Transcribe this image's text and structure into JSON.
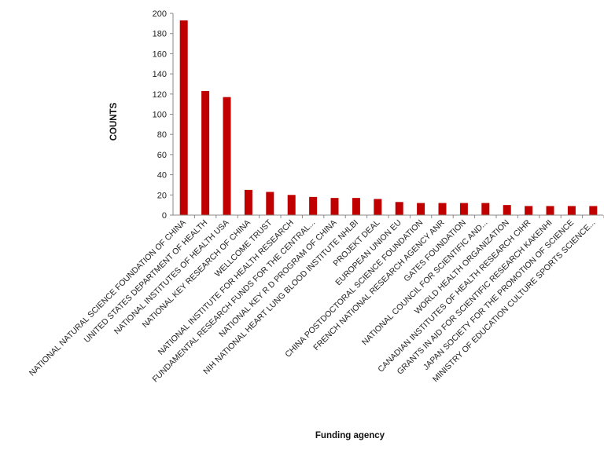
{
  "chart_data": {
    "type": "bar",
    "xlabel": "Funding agency",
    "ylabel": "COUNTS",
    "ylim": [
      0,
      200
    ],
    "yticks": [
      0,
      20,
      40,
      60,
      80,
      100,
      120,
      140,
      160,
      180,
      200
    ],
    "grid": false,
    "legend": "none",
    "bar_color": "#c00000",
    "categories": [
      "NATIONAL NATURAL SCIENCE FOUNDATION OF CHINA",
      "UNITED STATES DEPARTMENT OF HEALTH",
      "NATIONAL INSTITUTES OF HEALTH USA",
      "NATIONAL KEY RESEARCH OF CHINA",
      "WELLCOME TRUST",
      "NATIONAL INSTITUTE FOR HEALTH RESEARCH",
      "FUNDAMENTAL RESEARCH FUNDS FOR THE CENTRAL...",
      "NATIONAL KEY R D PROGRAM OF CHINA",
      "NIH NATIONAL HEART LUNG BLOOD INSTITUTE NHLBI",
      "PROJEKT DEAL",
      "EUROPEAN UNION EU",
      "CHINA POSTDOCTORAL SCIENCE FOUNDATION",
      "FRENCH NATIONAL RESEARCH AGENCY ANR",
      "GATES FOUNDATION",
      "NATIONAL COUNCIL FOR SCIENTIFIC AND...",
      "WORLD HEALTH ORGANIZATION",
      "CANADIAN INSTITUTES OF HEALTH RESEARCH CIHR",
      "GRANTS IN AID FOR SCIENTIFIC RESEARCH KAKENHI",
      "JAPAN SOCIETY FOR THE PROMOTION OF SCIENCE",
      "MINISTRY OF EDUCATION CULTURE SPORTS SCIENCE..."
    ],
    "values": [
      193,
      123,
      117,
      25,
      23,
      20,
      18,
      17,
      17,
      16,
      13,
      12,
      12,
      12,
      12,
      10,
      9,
      9,
      9,
      9
    ]
  }
}
